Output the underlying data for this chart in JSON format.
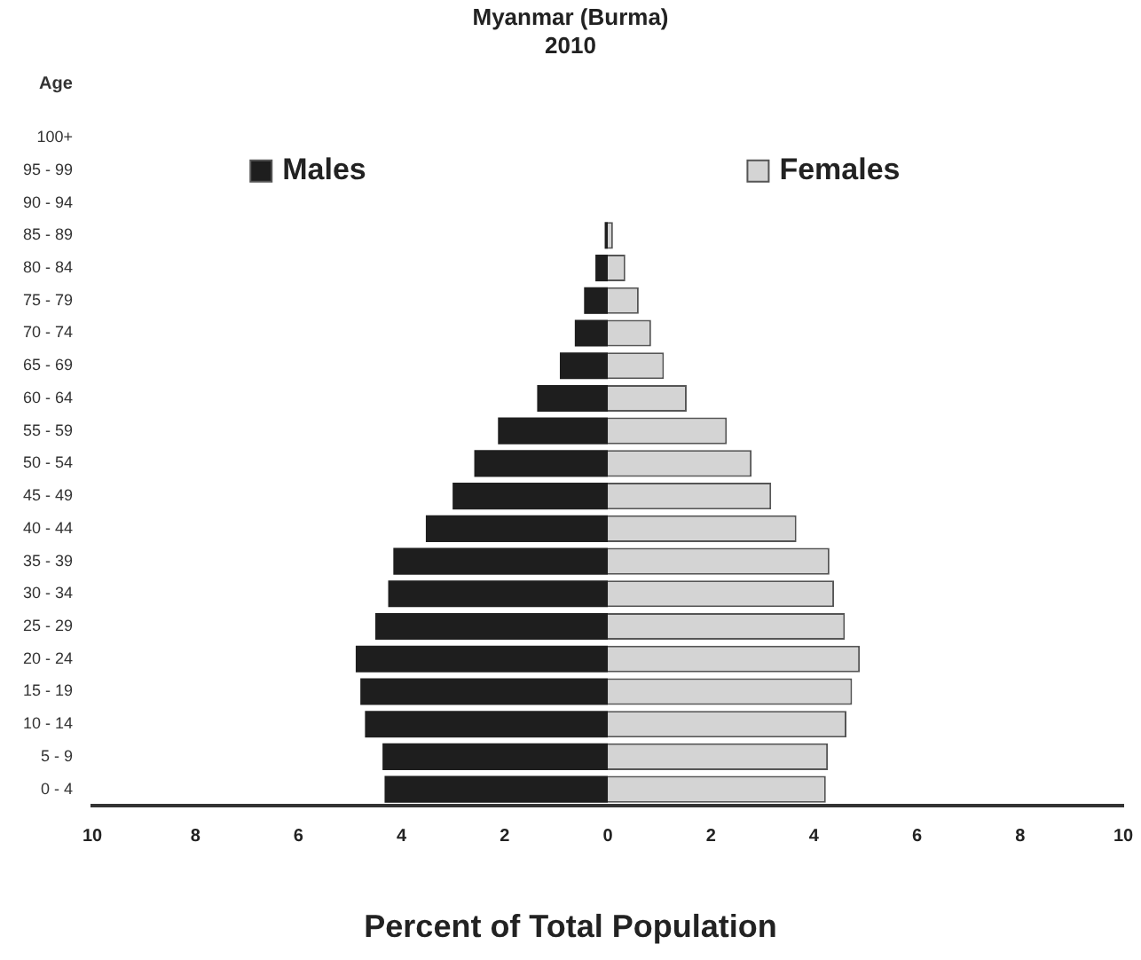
{
  "chart_data": {
    "type": "bar",
    "orientation": "horizontal",
    "stacked": true,
    "title": "Myanmar (Burma)",
    "subtitle": "2010",
    "ylabel": "Age",
    "xlabel": "Percent of Total Population",
    "categories": [
      "100+",
      "95 - 99",
      "90 - 94",
      "85 - 89",
      "80 - 84",
      "75 - 79",
      "70 - 74",
      "65 - 69",
      "60 - 64",
      "55 - 59",
      "50 - 54",
      "45 - 49",
      "40 - 44",
      "35 - 39",
      "30 - 34",
      "25 - 29",
      "20 - 24",
      "15 - 19",
      "10 - 14",
      "5 - 9",
      "0 - 4"
    ],
    "series": [
      {
        "name": "Males",
        "color": "#1e1e1e",
        "values": [
          0,
          0,
          0,
          -0.06,
          -0.24,
          -0.46,
          -0.64,
          -0.93,
          -1.37,
          -2.13,
          -2.59,
          -3.01,
          -3.53,
          -4.16,
          -4.26,
          -4.51,
          -4.89,
          -4.8,
          -4.71,
          -4.37,
          -4.33
        ]
      },
      {
        "name": "Females",
        "color": "#d4d4d4",
        "values": [
          0,
          0,
          0,
          0.1,
          0.34,
          0.6,
          0.84,
          1.09,
          1.53,
          2.31,
          2.79,
          3.17,
          3.66,
          4.3,
          4.39,
          4.6,
          4.89,
          4.74,
          4.63,
          4.27,
          4.23
        ]
      }
    ],
    "xlim": [
      -10,
      10
    ],
    "xticks": [
      {
        "value": -10,
        "label": "10"
      },
      {
        "value": -8,
        "label": "8"
      },
      {
        "value": -6,
        "label": "6"
      },
      {
        "value": -4,
        "label": "4"
      },
      {
        "value": -2,
        "label": "2"
      },
      0,
      2,
      4,
      6,
      8,
      10
    ],
    "grid": false,
    "legend": "top"
  }
}
